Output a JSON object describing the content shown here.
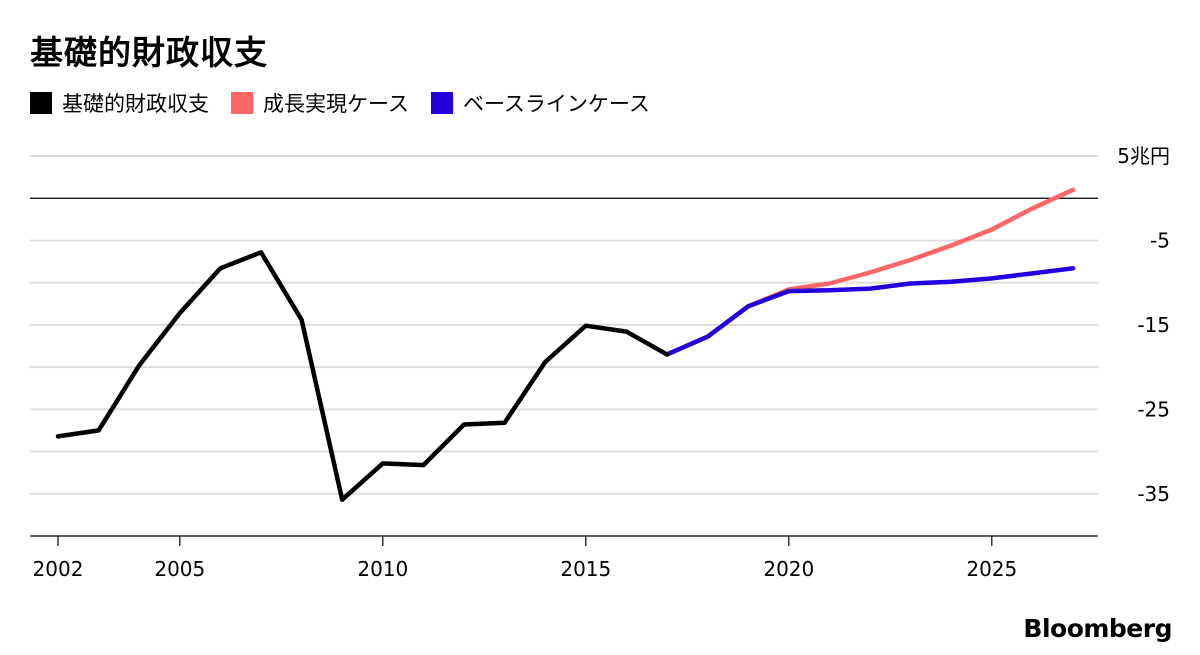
{
  "title": "基礎的財政収支",
  "source": "Bloomberg",
  "legend": [
    {
      "label": "基礎的財政収支",
      "color": "#000000"
    },
    {
      "label": "成長実現ケース",
      "color": "#ff6666"
    },
    {
      "label": "ベースラインケース",
      "color": "#2200dd"
    }
  ],
  "chart_data": {
    "type": "line",
    "title": "基礎的財政収支",
    "ylim": [
      -40,
      5
    ],
    "xlim": [
      2002,
      2027
    ],
    "y_ticks": [
      {
        "value": 5,
        "label": "5兆円"
      },
      {
        "value": -5,
        "label": "-5"
      },
      {
        "value": -15,
        "label": "-15"
      },
      {
        "value": -25,
        "label": "-25"
      },
      {
        "value": -35,
        "label": "-35"
      }
    ],
    "x_ticks": [
      {
        "value": 2002,
        "label": "2002"
      },
      {
        "value": 2005,
        "label": "2005"
      },
      {
        "value": 2010,
        "label": "2010"
      },
      {
        "value": 2015,
        "label": "2015"
      },
      {
        "value": 2020,
        "label": "2020"
      },
      {
        "value": 2025,
        "label": "2025"
      }
    ],
    "gridlines": [
      5,
      0,
      -5,
      -10,
      -15,
      -20,
      -25,
      -30,
      -35,
      -40
    ],
    "zero_line": 0,
    "grid": true,
    "legend_position": "top-left",
    "series": [
      {
        "name": "基礎的財政収支",
        "color": "#000000",
        "x": [
          2002,
          2003,
          2004,
          2005,
          2006,
          2007,
          2008,
          2009,
          2010,
          2011,
          2012,
          2013,
          2014,
          2015,
          2016,
          2017
        ],
        "values": [
          -28.2,
          -27.5,
          -19.8,
          -13.6,
          -8.3,
          -6.4,
          -14.4,
          -35.7,
          -31.4,
          -31.6,
          -26.8,
          -26.6,
          -19.4,
          -15.1,
          -15.8,
          -18.5
        ]
      },
      {
        "name": "成長実現ケース",
        "color": "#ff6666",
        "x": [
          2017,
          2018,
          2019,
          2020,
          2021,
          2022,
          2023,
          2024,
          2025,
          2026,
          2027
        ],
        "values": [
          -18.5,
          -16.4,
          -12.8,
          -10.8,
          -10.1,
          -8.8,
          -7.3,
          -5.6,
          -3.7,
          -1.2,
          1.0
        ]
      },
      {
        "name": "ベースラインケース",
        "color": "#2200dd",
        "x": [
          2017,
          2018,
          2019,
          2020,
          2021,
          2022,
          2023,
          2024,
          2025,
          2026,
          2027
        ],
        "values": [
          -18.5,
          -16.4,
          -12.8,
          -11.0,
          -10.9,
          -10.7,
          -10.1,
          -9.9,
          -9.5,
          -8.9,
          -8.3
        ]
      }
    ]
  }
}
